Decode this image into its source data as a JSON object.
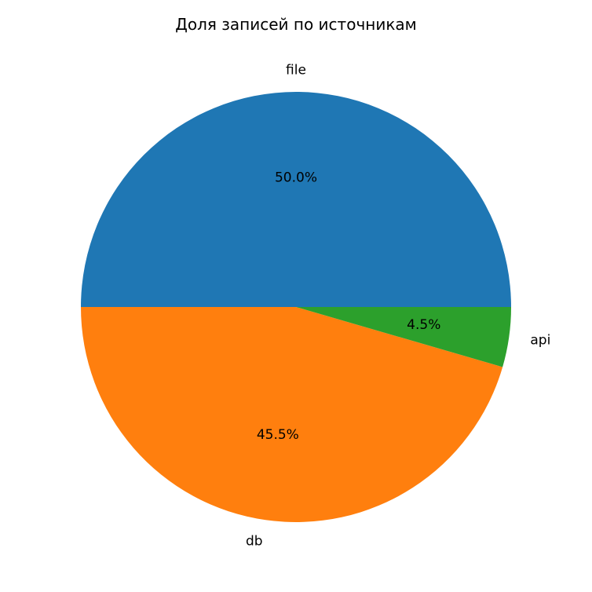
{
  "chart_data": {
    "type": "pie",
    "title": "Доля записей по источникам",
    "categories": [
      "file",
      "db",
      "api"
    ],
    "values": [
      50.0,
      45.5,
      4.5
    ],
    "value_labels": [
      "50.0%",
      "45.5%",
      "4.5%"
    ],
    "colors": [
      "#1f77b4",
      "#ff7f0e",
      "#2ca02c"
    ],
    "start_angle": "0 degrees (3 o'clock), counter-clockwise",
    "legend": "none"
  }
}
